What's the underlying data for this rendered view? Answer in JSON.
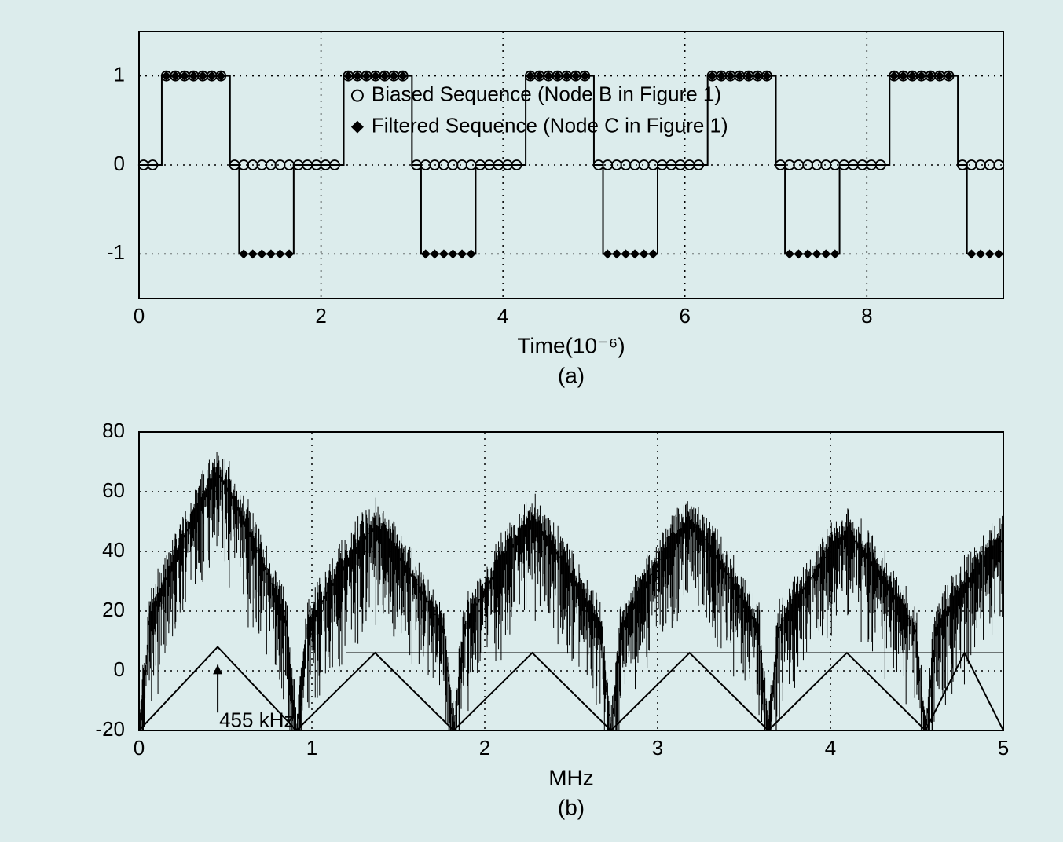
{
  "background_color": "#dcecec",
  "top_chart": {
    "type": "line+markers",
    "xlim": [
      0,
      9.5
    ],
    "ylim": [
      -1.5,
      1.5
    ],
    "xticks": [
      0,
      2,
      4,
      6,
      8
    ],
    "yticks": [
      -1,
      0,
      1
    ],
    "xlabel": "Time(10⁻⁶)",
    "sublabel": "(a)",
    "grid_color": "#000000",
    "grid_dash": "2,6",
    "axis_color": "#000000",
    "line_color": "#000000",
    "marker_circle_stroke": "#000000",
    "marker_circle_fill": "none",
    "marker_diamond_fill": "#000000",
    "legend": {
      "items": [
        {
          "marker": "circle",
          "label": "Biased Sequence (Node B in Figure 1)"
        },
        {
          "marker": "diamond",
          "label": "Filtered Sequence (Node C in Figure 1)"
        }
      ]
    },
    "period": 2.0,
    "biased_pattern": [
      {
        "from": 0.0,
        "to": 0.25,
        "v": 0
      },
      {
        "from": 0.25,
        "to": 1.0,
        "v": 1
      },
      {
        "from": 1.0,
        "to": 2.0,
        "v": 0
      }
    ],
    "filtered_pattern": [
      {
        "from": 0.0,
        "to": 0.25,
        "v": 0
      },
      {
        "from": 0.25,
        "to": 1.0,
        "v": 1
      },
      {
        "from": 1.0,
        "to": 1.1,
        "v": 0
      },
      {
        "from": 1.1,
        "to": 1.7,
        "v": -1
      },
      {
        "from": 1.7,
        "to": 2.0,
        "v": 0
      }
    ],
    "num_periods": 5,
    "marker_dx": 0.1
  },
  "bottom_chart": {
    "type": "spectrum",
    "xlim": [
      0,
      5
    ],
    "ylim": [
      -20,
      80
    ],
    "xticks": [
      0,
      1,
      2,
      3,
      4,
      5
    ],
    "yticks": [
      -20,
      0,
      20,
      40,
      60,
      80
    ],
    "xlabel": "MHz",
    "sublabel": "(b)",
    "grid_color": "#000000",
    "grid_dash": "2,6",
    "axis_color": "#000000",
    "spectrum_color": "#000000",
    "envelope_color": "#000000",
    "annotation": {
      "text": "455 kHz",
      "at_mhz": 0.455
    },
    "peaks_mhz": [
      0.455,
      1.365,
      2.275,
      3.185,
      4.095,
      5.0
    ],
    "nulls_mhz": [
      0.91,
      1.82,
      2.73,
      3.64,
      4.55
    ],
    "peak_db": [
      66,
      48,
      50,
      50,
      46,
      44
    ],
    "baseline_db": 18,
    "envelope_top_db": 6
  }
}
